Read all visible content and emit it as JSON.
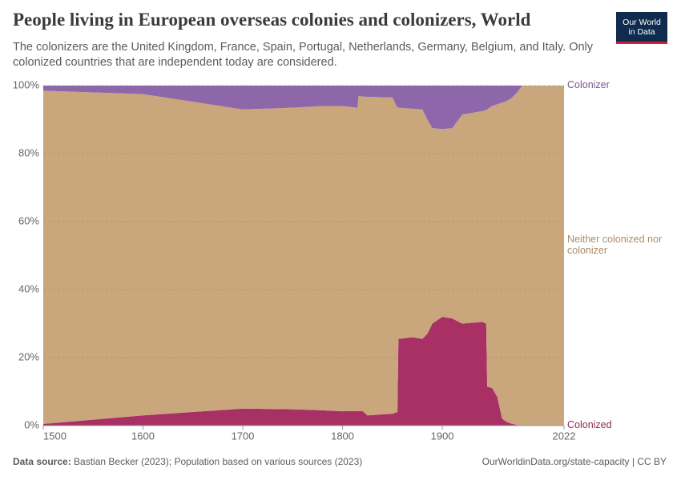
{
  "chart_data": {
    "type": "area",
    "title": "People living in European overseas colonies and colonizers, World",
    "subtitle": "The colonizers are the United Kingdom, France, Spain, Portugal, Netherlands, Germany, Belgium, and Italy. Only colonized countries that are independent today are considered.",
    "logo": "Our World in Data",
    "source_label": "Data source:",
    "source": "Bastian Becker (2023); Population based on various sources (2023)",
    "url": "OurWorldinData.org/state-capacity | CC BY",
    "stacked": true,
    "grid": true,
    "x": [
      1500,
      1600,
      1700,
      1750,
      1780,
      1800,
      1815,
      1816,
      1820,
      1825,
      1850,
      1855,
      1856,
      1870,
      1880,
      1885,
      1890,
      1900,
      1910,
      1920,
      1940,
      1944,
      1945,
      1950,
      1955,
      1960,
      1965,
      1970,
      1975,
      1980,
      2022
    ],
    "series": [
      {
        "name": "Colonized",
        "color": "#a83064",
        "values": [
          0.5,
          3,
          5,
          4.8,
          4.5,
          4.2,
          4.3,
          4.3,
          4.3,
          3,
          3.5,
          4,
          25.5,
          26,
          25.5,
          27,
          30,
          32,
          31.5,
          30,
          30.5,
          30,
          11.5,
          11,
          8.5,
          2,
          1,
          0.5,
          0.2,
          0,
          0
        ]
      },
      {
        "name": "Neither colonized nor colonizer",
        "color": "#c9a67b",
        "values": [
          98,
          94.5,
          88,
          88.7,
          89.5,
          89.8,
          89.2,
          92.7,
          92.5,
          93.7,
          93,
          89.5,
          68,
          67.2,
          67.5,
          63,
          57.5,
          55.2,
          56,
          61.5,
          62,
          62.8,
          81.5,
          83,
          86,
          93,
          94.5,
          96,
          97.8,
          100,
          100
        ]
      },
      {
        "name": "Colonizer",
        "color": "#8d67a9",
        "values": [
          1.5,
          2.5,
          7,
          6.5,
          6,
          6,
          6.5,
          3,
          3.2,
          3.3,
          3.5,
          6.5,
          6.5,
          6.8,
          7,
          10,
          12.5,
          12.8,
          12.5,
          8.5,
          7.5,
          7.2,
          7,
          6,
          5.5,
          5,
          4.5,
          3.5,
          2,
          0,
          0
        ]
      }
    ],
    "xlim": [
      1500,
      2022
    ],
    "xticks": [
      1500,
      1600,
      1700,
      1800,
      1900,
      2022
    ],
    "ylim": [
      0,
      100
    ],
    "yticks": [
      {
        "value": 0,
        "label": "0%"
      },
      {
        "value": 20,
        "label": "20%"
      },
      {
        "value": 40,
        "label": "40%"
      },
      {
        "value": 60,
        "label": "60%"
      },
      {
        "value": 80,
        "label": "80%"
      },
      {
        "value": 100,
        "label": "100%"
      }
    ]
  }
}
